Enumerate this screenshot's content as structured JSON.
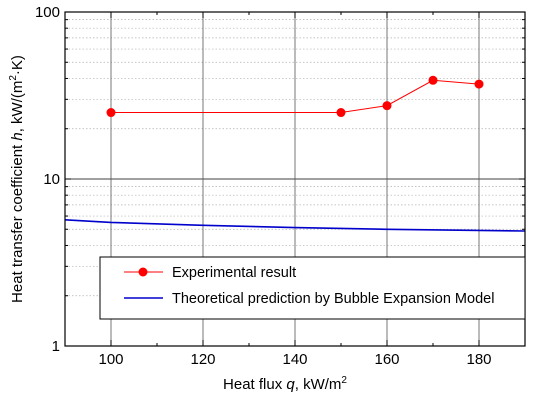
{
  "chart_data": {
    "type": "line",
    "xlabel": "Heat flux q, kW/m²",
    "ylabel": "Heat transfer coefficient h, kW/(m²·K)",
    "xlabel_parts": {
      "pre": "Heat flux ",
      "var": "q",
      "post": ", kW/m",
      "sup": "2"
    },
    "ylabel_parts": {
      "pre": "Heat transfer coefficient ",
      "var": "h",
      "mid": ", kW/(m",
      "sup": "2",
      "post": "·K)"
    },
    "xlim": [
      90,
      190
    ],
    "ylim": [
      1,
      100
    ],
    "yscale": "log",
    "grid": true,
    "x_ticks": [
      "100",
      "120",
      "140",
      "160",
      "180"
    ],
    "y_ticks": [
      "1",
      "10",
      "100"
    ],
    "legend_position": "lower-center",
    "series": [
      {
        "name": "Experimental result",
        "style": "line+markers",
        "color": "#ff0000",
        "x": [
          100,
          150,
          160,
          170,
          180
        ],
        "y": [
          25,
          25,
          27.5,
          39,
          37
        ]
      },
      {
        "name": "Theoretical prediction by Bubble Expansion Model",
        "style": "line",
        "color": "#0000cc",
        "x": [
          90,
          100,
          120,
          140,
          160,
          180,
          190
        ],
        "y": [
          5.7,
          5.5,
          5.28,
          5.12,
          5.0,
          4.92,
          4.88
        ]
      }
    ]
  }
}
